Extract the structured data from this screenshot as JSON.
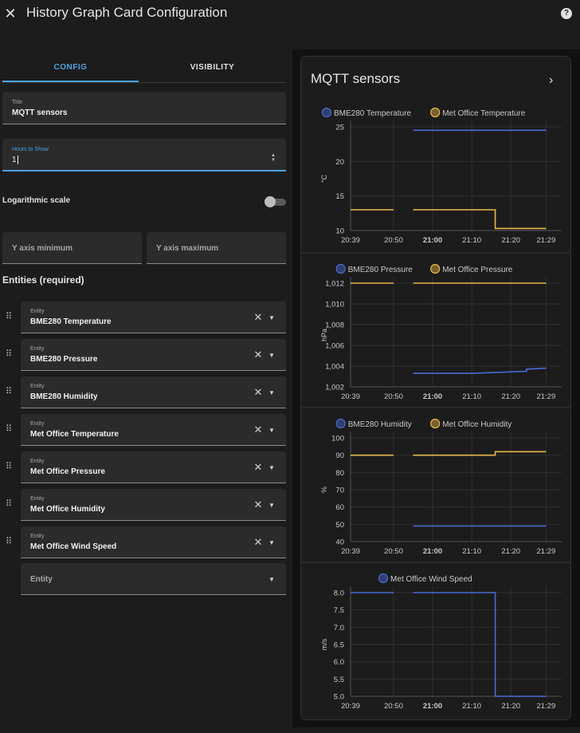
{
  "dialog": {
    "title": "History Graph Card Configuration"
  },
  "tabs": [
    {
      "label": "CONFIG"
    },
    {
      "label": "VISIBILITY"
    }
  ],
  "form": {
    "title_label": "Title",
    "title_value": "MQTT sensors",
    "hours_label": "Hours to Show",
    "hours_value": "1",
    "log_scale_label": "Logarithmic scale",
    "log_scale_on": false,
    "ymin_placeholder": "Y axis minimum",
    "ymax_placeholder": "Y axis maximum",
    "entities_title": "Entities (required)",
    "entity_label": "Entity",
    "entities": [
      "BME280 Temperature",
      "BME280 Pressure",
      "BME280 Humidity",
      "Met Office Temperature",
      "Met Office Pressure",
      "Met Office Humidity",
      "Met Office Wind Speed"
    ],
    "new_entity_placeholder": "Entity"
  },
  "preview": {
    "card_title": "MQTT sensors"
  },
  "colors": {
    "accent": "#4aa3df",
    "blue_series": "#4a6bd6",
    "orange_series": "#e8b84a"
  },
  "chart_data": [
    {
      "type": "line",
      "ylabel": "°C",
      "x_ticks": [
        "20:39",
        "20:50",
        "21:00",
        "21:10",
        "21:20",
        "21:29"
      ],
      "y_ticks": [
        "25",
        "20",
        "15",
        "10"
      ],
      "ylim": [
        10,
        25
      ],
      "series": [
        {
          "name": "BME280 Temperature",
          "color": "blue",
          "segments": [
            [
              [
                "20:55",
                24.5
              ],
              [
                "21:29",
                24.5
              ]
            ]
          ]
        },
        {
          "name": "Met Office Temperature",
          "color": "orange",
          "segments": [
            [
              [
                "20:39",
                13
              ],
              [
                "20:50",
                13
              ]
            ],
            [
              [
                "20:55",
                13
              ],
              [
                "21:16",
                13
              ],
              [
                "21:16",
                10.3
              ],
              [
                "21:29",
                10.3
              ]
            ]
          ]
        }
      ]
    },
    {
      "type": "line",
      "ylabel": "hPa",
      "x_ticks": [
        "20:39",
        "20:50",
        "21:00",
        "21:10",
        "21:20",
        "21:29"
      ],
      "y_ticks": [
        "1,012",
        "1,010",
        "1,008",
        "1,006",
        "1,004",
        "1,002"
      ],
      "ylim": [
        1002,
        1012
      ],
      "series": [
        {
          "name": "BME280 Pressure",
          "color": "blue",
          "segments": [
            [
              [
                "20:55",
                1003.3
              ],
              [
                "21:10",
                1003.3
              ],
              [
                "21:24",
                1003.5
              ],
              [
                "21:24",
                1003.7
              ],
              [
                "21:29",
                1003.8
              ]
            ]
          ]
        },
        {
          "name": "Met Office Pressure",
          "color": "orange",
          "segments": [
            [
              [
                "20:39",
                1012
              ],
              [
                "20:50",
                1012
              ]
            ],
            [
              [
                "20:55",
                1012
              ],
              [
                "21:29",
                1012
              ]
            ]
          ]
        }
      ]
    },
    {
      "type": "line",
      "ylabel": "%",
      "x_ticks": [
        "20:39",
        "20:50",
        "21:00",
        "21:10",
        "21:20",
        "21:29"
      ],
      "y_ticks": [
        "100",
        "90",
        "80",
        "70",
        "60",
        "50",
        "40"
      ],
      "ylim": [
        40,
        100
      ],
      "series": [
        {
          "name": "BME280 Humidity",
          "color": "blue",
          "segments": [
            [
              [
                "20:55",
                49
              ],
              [
                "21:29",
                49
              ]
            ]
          ]
        },
        {
          "name": "Met Office Humidity",
          "color": "orange",
          "segments": [
            [
              [
                "20:39",
                90
              ],
              [
                "20:50",
                90
              ]
            ],
            [
              [
                "20:55",
                90
              ],
              [
                "21:16",
                90
              ],
              [
                "21:16",
                92
              ],
              [
                "21:29",
                92
              ]
            ]
          ]
        }
      ]
    },
    {
      "type": "line",
      "ylabel": "m/s",
      "x_ticks": [
        "20:39",
        "20:50",
        "21:00",
        "21:10",
        "21:20",
        "21:29"
      ],
      "y_ticks": [
        "8.0",
        "7.5",
        "7.0",
        "6.5",
        "6.0",
        "5.5",
        "5.0"
      ],
      "ylim": [
        5,
        8
      ],
      "series": [
        {
          "name": "Met Office Wind Speed",
          "color": "blue",
          "segments": [
            [
              [
                "20:39",
                8
              ],
              [
                "20:50",
                8
              ]
            ],
            [
              [
                "20:55",
                8
              ],
              [
                "21:16",
                8
              ],
              [
                "21:16",
                5
              ],
              [
                "21:29",
                5
              ]
            ]
          ]
        }
      ]
    }
  ]
}
